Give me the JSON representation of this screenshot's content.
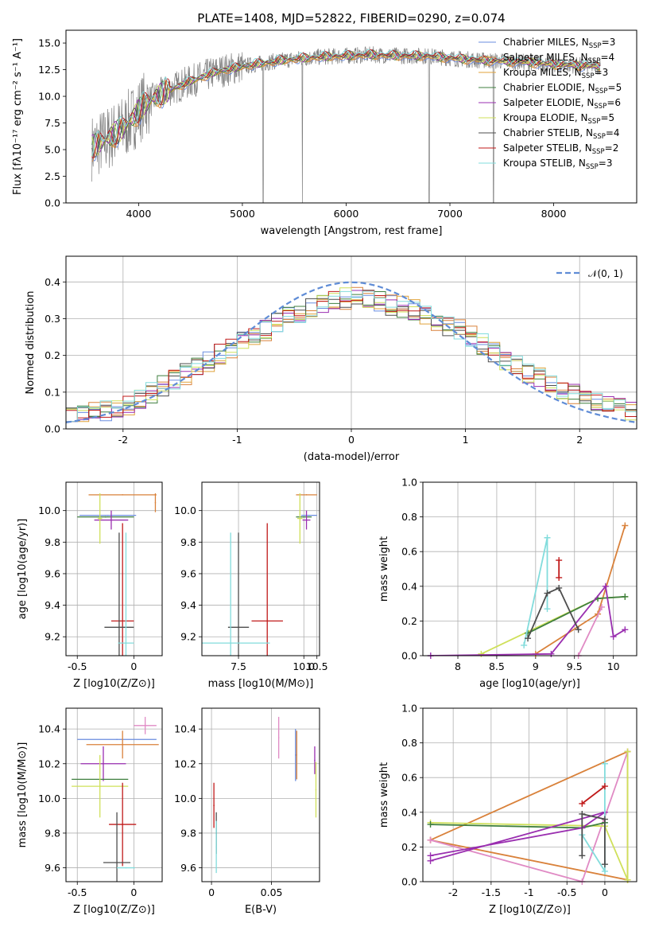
{
  "figure": {
    "title": "PLATE=1408, MJD=52822, FIBERID=0290, z=0.074"
  },
  "legend_models": [
    {
      "name": "Chabrier MILES, N",
      "nssp": "3",
      "color": "#6a8ddf"
    },
    {
      "name": "Salpeter MILES, N",
      "nssp": "4",
      "color": "#d9813a"
    },
    {
      "name": "Kroupa MILES, N",
      "nssp": "3",
      "color": "#e0a23a"
    },
    {
      "name": "Chabrier ELODIE, N",
      "nssp": "5",
      "color": "#3f7f3f"
    },
    {
      "name": "Salpeter ELODIE, N",
      "nssp": "6",
      "color": "#9a2fb0"
    },
    {
      "name": "Kroupa ELODIE, N",
      "nssp": "5",
      "color": "#cfe05a"
    },
    {
      "name": "Chabrier STELIB, N",
      "nssp": "4",
      "color": "#4d4d4d"
    },
    {
      "name": "Salpeter STELIB, N",
      "nssp": "2",
      "color": "#c01a1a"
    },
    {
      "name": "Kroupa STELIB, N",
      "nssp": "3",
      "color": "#82dcdc"
    }
  ],
  "chart_data": [
    {
      "panel": "spectrum",
      "type": "line",
      "xlabel": "wavelength [Angstrom, rest frame]",
      "ylabel": "Flux [fλ10⁻¹⁷ erg cm⁻² s⁻¹ A⁻¹]",
      "xlim": [
        3300,
        8800
      ],
      "ylim": [
        0,
        16.2
      ],
      "xticks": [
        4000,
        5000,
        6000,
        7000,
        8000
      ],
      "yticks": [
        0.0,
        2.5,
        5.0,
        7.5,
        10.0,
        12.5,
        15.0
      ],
      "data_series": {
        "name": "data",
        "color": "#808080"
      },
      "model_continuum": {
        "x": [
          3550,
          3700,
          3850,
          3950,
          4050,
          4250,
          4500,
          4750,
          5000,
          5250,
          5500,
          5750,
          6000,
          6250,
          6500,
          6750,
          7000,
          7250,
          7500,
          7750,
          8000,
          8250,
          8450
        ],
        "y": [
          5.2,
          6.0,
          7.0,
          8.0,
          9.2,
          10.4,
          11.4,
          12.3,
          12.8,
          13.2,
          13.5,
          13.7,
          13.8,
          13.9,
          13.8,
          13.8,
          13.6,
          13.4,
          13.3,
          13.2,
          13.0,
          12.9,
          12.8
        ]
      }
    },
    {
      "panel": "residual-histogram",
      "type": "line",
      "xlabel": "(data-model)/error",
      "ylabel": "Normed distribution",
      "xlim": [
        -2.5,
        2.5
      ],
      "ylim": [
        0,
        0.47
      ],
      "xticks": [
        -2,
        -1,
        0,
        1,
        2
      ],
      "yticks": [
        0.0,
        0.1,
        0.2,
        0.3,
        0.4
      ],
      "legend": "𝒩(0, 1)",
      "gaussian": {
        "mean": 0,
        "sigma": 1,
        "color": "#5f8cd6"
      },
      "histogram_envelope": {
        "x": [
          -2.5,
          -2.0,
          -1.5,
          -1.0,
          -0.5,
          0.0,
          0.5,
          1.0,
          1.5,
          2.0,
          2.5
        ],
        "y": [
          0.03,
          0.06,
          0.14,
          0.23,
          0.31,
          0.36,
          0.33,
          0.26,
          0.16,
          0.09,
          0.04
        ]
      }
    },
    {
      "panel": "age-vs-Z",
      "type": "scatter",
      "xlabel": "Z [log10(Z/Z⊙)]",
      "ylabel": "age  [log10(age/yr)]",
      "xlim": [
        -0.6,
        0.25
      ],
      "ylim": [
        9.08,
        10.18
      ],
      "xticks": [
        -0.5,
        0.0
      ],
      "yticks": [
        9.2,
        9.4,
        9.6,
        9.8,
        10.0
      ],
      "points": [
        {
          "model": 1,
          "x": -0.1,
          "y": 10.1,
          "xerr": 0.3,
          "yerr": 0
        },
        {
          "model": 1,
          "x": 0.19,
          "y": 10.05,
          "xerr": 0,
          "yerr": 0.06
        },
        {
          "model": 0,
          "x": -0.23,
          "y": 9.97,
          "xerr": 0.25,
          "yerr": 0
        },
        {
          "model": 3,
          "x": -0.25,
          "y": 9.96,
          "xerr": 0.25,
          "yerr": 0
        },
        {
          "model": 4,
          "x": -0.2,
          "y": 9.94,
          "xerr": 0.15,
          "yerr": 0.06
        },
        {
          "model": 5,
          "x": -0.3,
          "y": 9.95,
          "xerr": 0.02,
          "yerr": 0.16
        },
        {
          "model": 7,
          "x": -0.1,
          "y": 9.3,
          "xerr": 0.1,
          "yerr": 0.62
        },
        {
          "model": 6,
          "x": -0.13,
          "y": 9.26,
          "xerr": 0.13,
          "yerr": 0.6
        },
        {
          "model": 8,
          "x": -0.07,
          "y": 9.16,
          "xerr": 0.07,
          "yerr": 0.7
        }
      ]
    },
    {
      "panel": "age-vs-mass",
      "type": "scatter",
      "xlabel": "mass [log10(M/M⊙)]",
      "ylabel": "",
      "xlim": [
        6.1,
        10.6
      ],
      "ylim": [
        9.08,
        10.18
      ],
      "xticks": [
        7.5,
        10.0,
        10.5
      ],
      "yticks": [
        9.2,
        9.4,
        9.6,
        9.8,
        10.0
      ],
      "xticklabels": [
        "7.5",
        "10.0",
        "10.5"
      ],
      "points": [
        {
          "model": 1,
          "x": 10.1,
          "y": 10.1,
          "xerr": 0.4,
          "yerr": 0
        },
        {
          "model": 0,
          "x": 10.2,
          "y": 9.97,
          "xerr": 0.3,
          "yerr": 0
        },
        {
          "model": 3,
          "x": 10.0,
          "y": 9.96,
          "xerr": 0.3,
          "yerr": 0
        },
        {
          "model": 4,
          "x": 10.1,
          "y": 9.94,
          "xerr": 0.15,
          "yerr": 0.06
        },
        {
          "model": 5,
          "x": 9.85,
          "y": 9.95,
          "xerr": 0.1,
          "yerr": 0.16
        },
        {
          "model": 7,
          "x": 8.6,
          "y": 9.3,
          "xerr": 0.6,
          "yerr": 0.62
        },
        {
          "model": 6,
          "x": 7.5,
          "y": 9.26,
          "xerr": 0.4,
          "yerr": 0.6
        },
        {
          "model": 8,
          "x": 7.2,
          "y": 9.16,
          "xerr": 1.5,
          "yerr": 0.7
        }
      ]
    },
    {
      "panel": "mass-weight-vs-age",
      "type": "line",
      "xlabel": "age  [log10(age/yr)]",
      "ylabel": "mass weight",
      "xlim": [
        7.55,
        10.3
      ],
      "ylim": [
        0,
        1
      ],
      "xticks": [
        8.0,
        8.5,
        9.0,
        9.5,
        10.0
      ],
      "yticks": [
        0.0,
        0.2,
        0.4,
        0.6,
        0.8,
        1.0
      ],
      "series": [
        {
          "model": 1,
          "x": [
            9.0,
            9.8,
            10.15
          ],
          "y": [
            0.01,
            0.24,
            0.75
          ]
        },
        {
          "model": 5,
          "x": [
            8.3,
            9.8,
            10.15
          ],
          "y": [
            0.01,
            0.33,
            0.34
          ]
        },
        {
          "model": 3,
          "x": [
            8.9,
            9.8,
            10.15
          ],
          "y": [
            0.13,
            0.33,
            0.34
          ]
        },
        {
          "model": 4,
          "x": [
            7.65,
            9.2,
            9.9,
            10.0,
            10.15
          ],
          "y": [
            0.0,
            0.01,
            0.4,
            0.11,
            0.15
          ]
        },
        {
          "model": 8,
          "x": [
            8.85,
            9.15,
            9.15
          ],
          "y": [
            0.06,
            0.68,
            0.27
          ]
        },
        {
          "model": 6,
          "x": [
            8.9,
            9.15,
            9.3,
            9.55
          ],
          "y": [
            0.1,
            0.36,
            0.39,
            0.15
          ]
        },
        {
          "model": 7,
          "x": [
            9.3,
            9.3
          ],
          "y": [
            0.45,
            0.55
          ]
        },
        {
          "model": 9,
          "x": [
            9.55,
            9.85
          ],
          "y": [
            0.0,
            0.28
          ]
        }
      ]
    },
    {
      "panel": "mass-vs-Z",
      "type": "scatter",
      "xlabel": "Z [log10(Z/Z⊙)]",
      "ylabel": "mass [log10(M/M⊙)]",
      "xlim": [
        -0.6,
        0.25
      ],
      "ylim": [
        9.52,
        10.52
      ],
      "xticks": [
        -0.5,
        0.0
      ],
      "yticks": [
        9.6,
        9.8,
        10.0,
        10.2,
        10.4
      ],
      "points": [
        {
          "model": 9,
          "x": 0.1,
          "y": 10.42,
          "xerr": 0.1,
          "yerr": 0.05
        },
        {
          "model": 0,
          "x": -0.15,
          "y": 10.34,
          "xerr": 0.35,
          "yerr": 0
        },
        {
          "model": 1,
          "x": -0.1,
          "y": 10.31,
          "xerr": 0.32,
          "yerr": 0.08
        },
        {
          "model": 4,
          "x": -0.27,
          "y": 10.2,
          "xerr": 0.2,
          "yerr": 0.1
        },
        {
          "model": 3,
          "x": -0.3,
          "y": 10.11,
          "xerr": 0.25,
          "yerr": 0
        },
        {
          "model": 5,
          "x": -0.3,
          "y": 10.07,
          "xerr": 0.25,
          "yerr": 0.18
        },
        {
          "model": 7,
          "x": -0.1,
          "y": 9.85,
          "xerr": 0.12,
          "yerr": 0.24
        },
        {
          "model": 6,
          "x": -0.15,
          "y": 9.63,
          "xerr": 0.12,
          "yerr": 0.29
        },
        {
          "model": 8,
          "x": -0.07,
          "y": 9.6,
          "xerr": 0.08,
          "yerr": 0
        }
      ]
    },
    {
      "panel": "mass-vs-ebv",
      "type": "scatter",
      "xlabel": "E(B-V)",
      "ylabel": "",
      "xlim": [
        -0.008,
        0.09
      ],
      "ylim": [
        9.52,
        10.52
      ],
      "xticks": [
        0.0,
        0.05
      ],
      "yticks": [
        9.6,
        9.8,
        10.0,
        10.2,
        10.4
      ],
      "points": [
        {
          "model": 9,
          "x": 0.056,
          "y": 10.35,
          "xerr": 0,
          "yerr": 0.12
        },
        {
          "model": 0,
          "x": 0.07,
          "y": 10.25,
          "xerr": 0,
          "yerr": 0.15
        },
        {
          "model": 1,
          "x": 0.071,
          "y": 10.25,
          "xerr": 0,
          "yerr": 0.14
        },
        {
          "model": 4,
          "x": 0.086,
          "y": 10.22,
          "xerr": 0,
          "yerr": 0.08
        },
        {
          "model": 5,
          "x": 0.087,
          "y": 10.05,
          "xerr": 0,
          "yerr": 0.16
        },
        {
          "model": 7,
          "x": 0.002,
          "y": 9.96,
          "xerr": 0,
          "yerr": 0.13
        },
        {
          "model": 6,
          "x": 0.004,
          "y": 9.8,
          "xerr": 0,
          "yerr": 0.12
        },
        {
          "model": 8,
          "x": 0.004,
          "y": 9.72,
          "xerr": 0,
          "yerr": 0.15
        }
      ]
    },
    {
      "panel": "mass-weight-vs-Z",
      "type": "line",
      "xlabel": "Z [log10(Z/Z⊙)]",
      "ylabel": "mass weight",
      "xlim": [
        -2.4,
        0.42
      ],
      "ylim": [
        0,
        1
      ],
      "xticks": [
        -2.0,
        -1.5,
        -1.0,
        -0.5,
        0.0
      ],
      "yticks": [
        0.0,
        0.2,
        0.4,
        0.6,
        0.8,
        1.0
      ],
      "series": [
        {
          "model": 1,
          "x": [
            -2.3,
            0.3,
            0.3,
            -2.3
          ],
          "y": [
            0.24,
            0.75,
            0.01,
            0.24
          ]
        },
        {
          "model": 9,
          "x": [
            -2.3,
            -0.3,
            0.3
          ],
          "y": [
            0.24,
            0.0,
            0.75
          ]
        },
        {
          "model": 5,
          "x": [
            -2.3,
            0.0,
            0.3,
            0.3
          ],
          "y": [
            0.34,
            0.32,
            0.01,
            0.75
          ]
        },
        {
          "model": 3,
          "x": [
            -2.3,
            -0.3,
            0.0
          ],
          "y": [
            0.33,
            0.31,
            0.34
          ]
        },
        {
          "model": 4,
          "x": [
            -2.3,
            -0.3,
            0.0,
            -2.3
          ],
          "y": [
            0.15,
            0.31,
            0.4,
            0.12
          ]
        },
        {
          "model": 8,
          "x": [
            0.0,
            0.0,
            -0.3
          ],
          "y": [
            0.68,
            0.06,
            0.27
          ]
        },
        {
          "model": 6,
          "x": [
            -0.3,
            -0.3,
            0.0,
            0.0
          ],
          "y": [
            0.15,
            0.39,
            0.36,
            0.1
          ]
        },
        {
          "model": 7,
          "x": [
            -0.3,
            0.0
          ],
          "y": [
            0.45,
            0.55
          ]
        }
      ]
    }
  ]
}
